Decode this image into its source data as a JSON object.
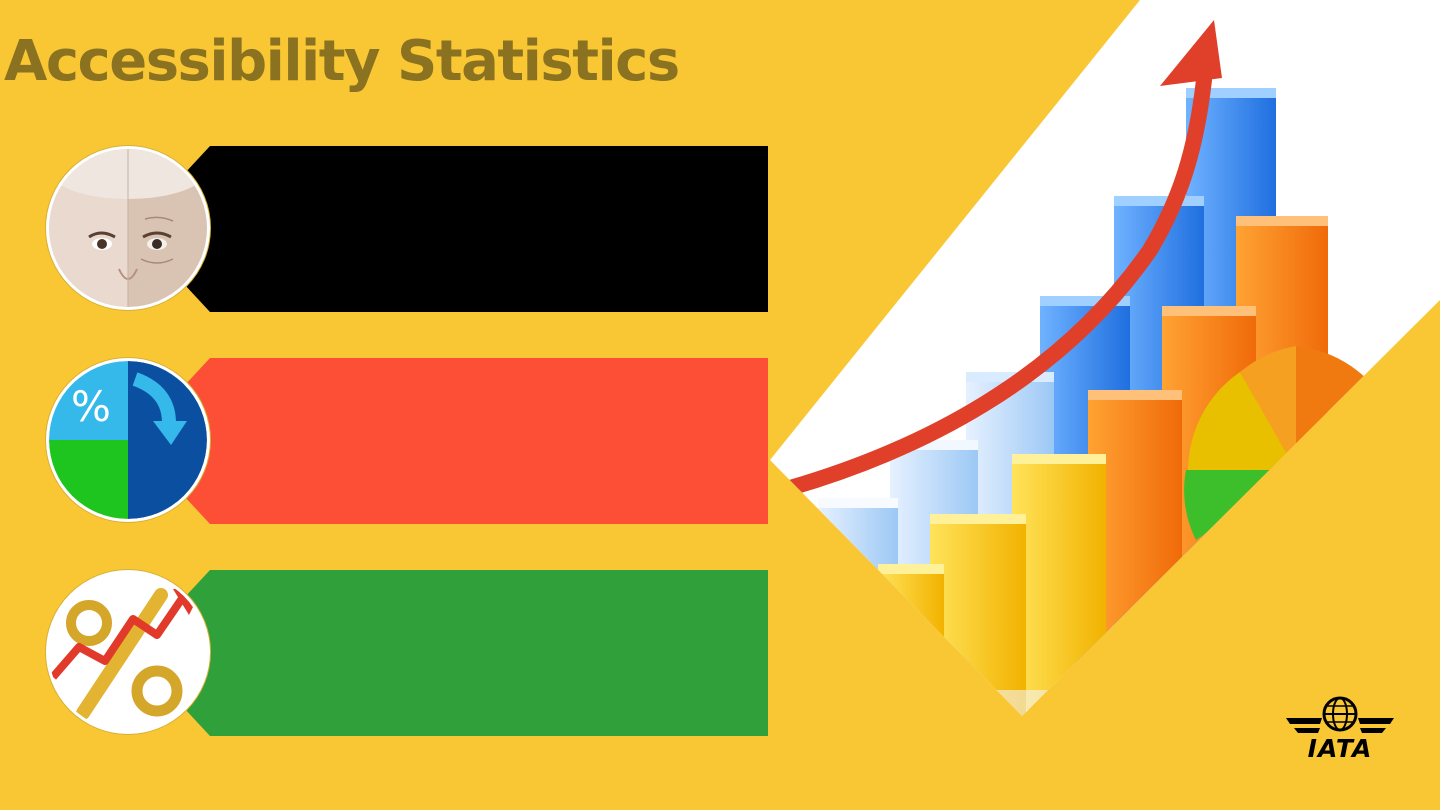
{
  "slide": {
    "title": "Accessibility Statistics",
    "colors": {
      "background": "#f9c734",
      "title": "#8a7221",
      "bar_1": "#000000",
      "bar_2": "#fc4f35",
      "bar_3": "#2fa03a",
      "logo": "#000000"
    }
  },
  "rows": [
    {
      "icon": "aging-face-icon",
      "bar_color": "#000000",
      "text": ""
    },
    {
      "icon": "percent-pie-chart-icon",
      "bar_color": "#fc4f35",
      "text": ""
    },
    {
      "icon": "percent-rising-arrow-icon",
      "bar_color": "#2fa03a",
      "text": ""
    }
  ],
  "illustration": {
    "icon": "rising-bar-chart-arrow-icon"
  },
  "logo": {
    "text": "IATA",
    "icon": "globe-wings-icon"
  }
}
